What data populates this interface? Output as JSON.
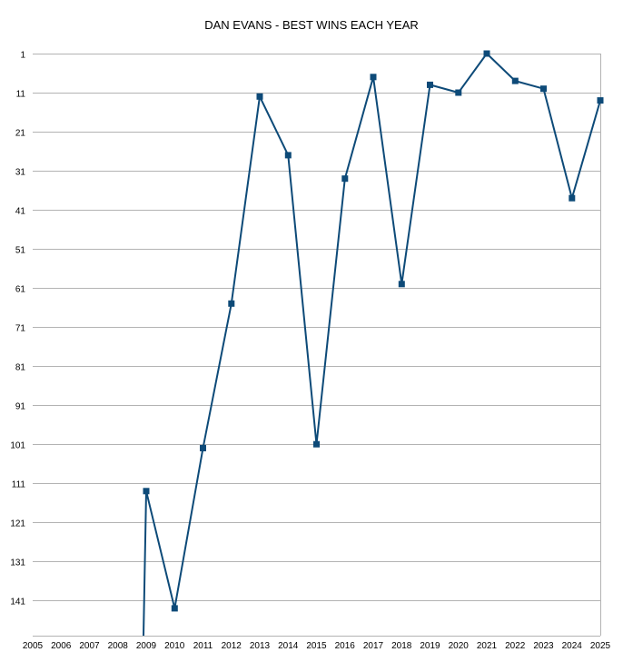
{
  "chart_data": {
    "type": "line",
    "title": "DAN EVANS - BEST WINS EACH YEAR",
    "xlabel": "",
    "ylabel": "",
    "y_inverted": true,
    "ylim": [
      1,
      150
    ],
    "y_ticks": [
      1,
      11,
      21,
      31,
      41,
      51,
      61,
      71,
      81,
      91,
      101,
      111,
      121,
      131,
      141
    ],
    "x_ticks": [
      "2005",
      "2006",
      "2007",
      "2008",
      "2009",
      "2010",
      "2011",
      "2012",
      "2013",
      "2014",
      "2015",
      "2016",
      "2017",
      "2018",
      "2019",
      "2020",
      "2021",
      "2022",
      "2023",
      "2024",
      "2025"
    ],
    "grid": "horizontal",
    "legend": "none",
    "line_color": "#0d4a78",
    "series": [
      {
        "x": [
          "2009",
          "2009",
          "2010",
          "2011",
          "2012",
          "2013",
          "2014",
          "2015",
          "2016",
          "2017",
          "2018",
          "2019",
          "2020",
          "2021",
          "2022",
          "2023",
          "2024",
          "2025"
        ],
        "y": [
          150,
          113,
          143,
          102,
          65,
          12,
          27,
          101,
          33,
          7,
          60,
          9,
          11,
          1,
          8,
          10,
          38,
          13
        ],
        "markers": [
          false,
          true,
          true,
          true,
          true,
          true,
          true,
          true,
          true,
          true,
          true,
          true,
          true,
          true,
          true,
          true,
          true,
          true
        ]
      }
    ]
  }
}
